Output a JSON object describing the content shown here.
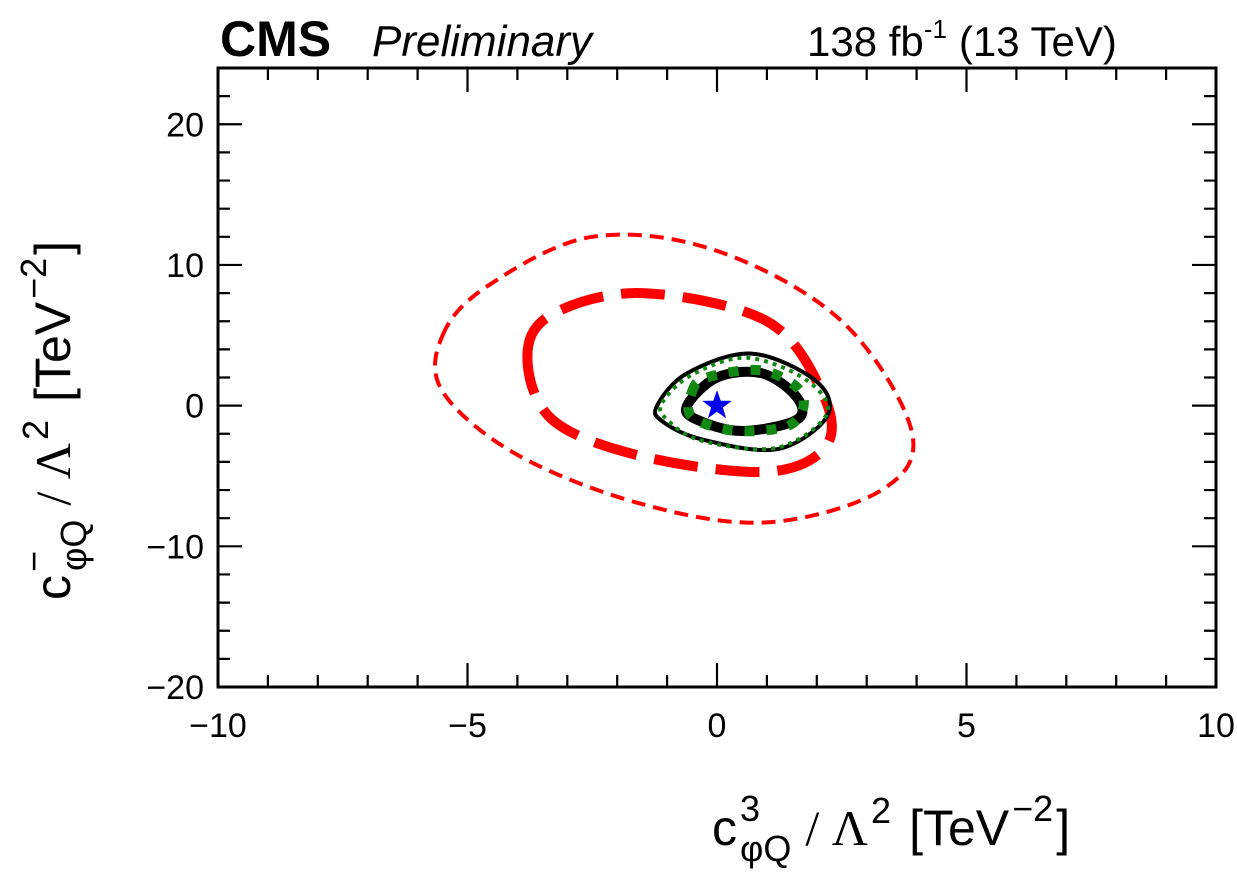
{
  "header": {
    "experiment": "CMS",
    "status": "Preliminary",
    "luminosity": "138 fb",
    "lumi_exponent": "-1",
    "energy": "(13 TeV)"
  },
  "axes": {
    "x_coefficient": "c",
    "x_superscript": "3",
    "x_subscript": "φQ",
    "y_coefficient": "c",
    "y_superscript": "−",
    "y_subscript": "φQ",
    "divisor": "/ Λ",
    "divisor_exponent": "2",
    "unit_open": "[TeV",
    "unit_exponent": "−2",
    "unit_close": "]"
  },
  "chart_data": {
    "type": "contour",
    "xlim": [
      -10,
      10
    ],
    "ylim": [
      -20,
      24
    ],
    "x_ticks": [
      -10,
      -5,
      0,
      5,
      10
    ],
    "x_tick_labels": [
      "−10",
      "−5",
      "0",
      "5",
      "10"
    ],
    "y_ticks": [
      -20,
      -10,
      0,
      10,
      20
    ],
    "y_tick_labels": [
      "−20",
      "−10",
      "0",
      "10",
      "20"
    ],
    "grid": false,
    "best_fit": {
      "x": 0.0,
      "y": 0.0,
      "marker": "star",
      "color": "#0000ee"
    },
    "contours": [
      {
        "style": "dashed",
        "weight": "thin",
        "color": "#ff0000",
        "points": [
          [
            -5.5,
            5.0
          ],
          [
            -4.6,
            8.5
          ],
          [
            -2.5,
            12.0
          ],
          [
            0.0,
            11.0
          ],
          [
            2.5,
            6.0
          ],
          [
            3.9,
            -1.8
          ],
          [
            3.3,
            -6.0
          ],
          [
            1.0,
            -8.3
          ],
          [
            -1.5,
            -7.0
          ],
          [
            -4.0,
            -3.5
          ],
          [
            -5.5,
            1.0
          ]
        ]
      },
      {
        "style": "dashed",
        "weight": "thick",
        "color": "#ff0000",
        "points": [
          [
            -3.8,
            3.5
          ],
          [
            -3.3,
            6.5
          ],
          [
            -1.5,
            8.0
          ],
          [
            1.0,
            6.0
          ],
          [
            2.1,
            1.0
          ],
          [
            2.2,
            -2.8
          ],
          [
            1.0,
            -4.7
          ],
          [
            -1.5,
            -3.6
          ],
          [
            -3.3,
            -1.0
          ]
        ]
      },
      {
        "style": "solid",
        "weight": "thin",
        "color": "#000000",
        "points": [
          [
            -1.2,
            0.0
          ],
          [
            -0.6,
            2.3
          ],
          [
            0.7,
            3.7
          ],
          [
            2.0,
            1.7
          ],
          [
            2.2,
            -0.8
          ],
          [
            1.2,
            -3.1
          ],
          [
            -0.3,
            -2.4
          ],
          [
            -1.1,
            -1.1
          ]
        ]
      },
      {
        "style": "solid",
        "weight": "thick",
        "color": "#000000",
        "points": [
          [
            -0.6,
            0.0
          ],
          [
            0.0,
            2.0
          ],
          [
            0.9,
            2.3
          ],
          [
            1.6,
            0.6
          ],
          [
            1.6,
            -1.0
          ],
          [
            0.5,
            -1.8
          ],
          [
            -0.4,
            -1.0
          ]
        ]
      },
      {
        "style": "dotted",
        "weight": "thin",
        "color": "#118811",
        "points": [
          [
            -1.1,
            0.2
          ],
          [
            -0.5,
            2.2
          ],
          [
            0.6,
            3.4
          ],
          [
            1.8,
            1.8
          ],
          [
            2.2,
            -0.6
          ],
          [
            1.2,
            -3.0
          ],
          [
            -0.3,
            -2.5
          ],
          [
            -1.0,
            -1.0
          ]
        ]
      },
      {
        "style": "dotted",
        "weight": "thick",
        "color": "#118811",
        "points": [
          [
            -0.5,
            1.0
          ],
          [
            -0.2,
            2.0
          ],
          [
            0.9,
            2.5
          ],
          [
            1.7,
            0.9
          ],
          [
            1.5,
            -1.3
          ],
          [
            0.4,
            -1.8
          ],
          [
            -0.5,
            -0.8
          ]
        ]
      }
    ]
  }
}
